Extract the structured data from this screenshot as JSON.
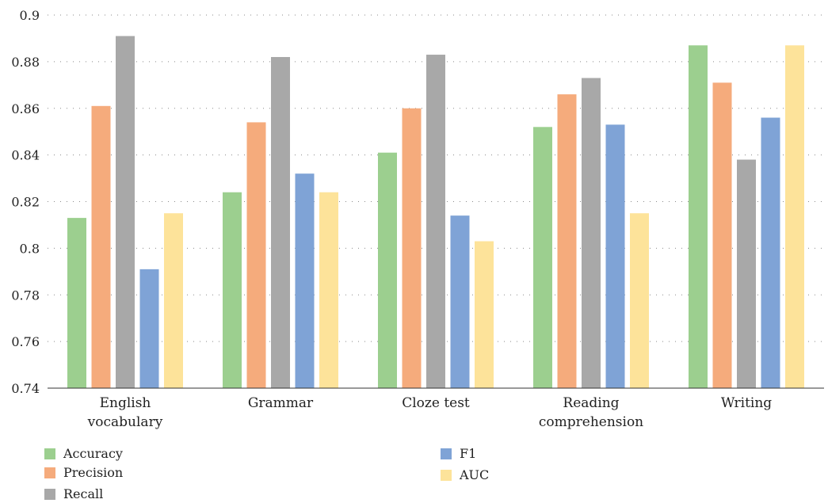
{
  "chart_data": {
    "type": "bar",
    "categories": [
      [
        "English",
        "vocabulary"
      ],
      [
        "Grammar"
      ],
      [
        "Cloze test"
      ],
      [
        "Reading",
        "comprehension"
      ],
      [
        "Writing"
      ]
    ],
    "series": [
      {
        "name": "Accuracy",
        "color": "#9ccf8f",
        "values": [
          0.813,
          0.824,
          0.841,
          0.852,
          0.887
        ]
      },
      {
        "name": "Precision",
        "color": "#f5ab7c",
        "values": [
          0.861,
          0.854,
          0.86,
          0.866,
          0.871
        ]
      },
      {
        "name": "Recall",
        "color": "#a8a8a8",
        "values": [
          0.891,
          0.882,
          0.883,
          0.873,
          0.838
        ]
      },
      {
        "name": "F1",
        "color": "#7fa3d6",
        "values": [
          0.791,
          0.832,
          0.814,
          0.853,
          0.856
        ]
      },
      {
        "name": "AUC",
        "color": "#fde39a",
        "values": [
          0.815,
          0.824,
          0.803,
          0.815,
          0.887
        ]
      }
    ],
    "ylim": [
      0.74,
      0.9
    ],
    "yticks": [
      "0.74",
      "0.76",
      "0.78",
      "0.8",
      "0.82",
      "0.84",
      "0.86",
      "0.88",
      "0.9"
    ],
    "grid": true,
    "legend_position": "bottom"
  }
}
